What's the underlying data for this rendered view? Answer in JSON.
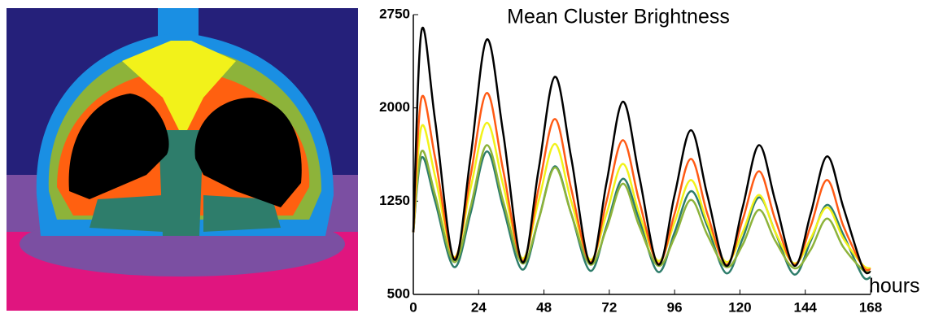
{
  "chart_data": {
    "type": "line",
    "title": "Mean Cluster Brightness",
    "xlabel": "hours",
    "x": [
      0,
      3,
      8,
      15,
      21,
      27,
      33,
      40,
      46,
      52,
      58,
      65,
      71,
      77,
      83,
      90,
      96,
      102,
      108,
      115,
      121,
      127,
      133,
      140,
      146,
      152,
      158,
      165,
      168
    ],
    "xlim": [
      0,
      168
    ],
    "xticks": [
      0,
      24,
      48,
      72,
      96,
      120,
      144,
      168
    ],
    "ylim": [
      500,
      2750
    ],
    "yticks": [
      500,
      1250,
      2000,
      2750
    ],
    "series": [
      {
        "color": "#000000",
        "values": [
          1000,
          2620,
          1900,
          780,
          1600,
          2550,
          1800,
          760,
          1500,
          2250,
          1600,
          750,
          1400,
          2050,
          1450,
          740,
          1300,
          1820,
          1300,
          730,
          1200,
          1700,
          1250,
          730,
          1150,
          1610,
          1200,
          720,
          680
        ]
      },
      {
        "color": "#ff5a14",
        "values": [
          1000,
          2080,
          1600,
          790,
          1450,
          2120,
          1500,
          770,
          1350,
          1910,
          1350,
          760,
          1250,
          1740,
          1250,
          750,
          1150,
          1590,
          1150,
          740,
          1100,
          1490,
          1100,
          740,
          1050,
          1420,
          1050,
          730,
          700
        ]
      },
      {
        "color": "#f2f21a",
        "values": [
          1000,
          1850,
          1450,
          800,
          1350,
          1880,
          1380,
          790,
          1250,
          1710,
          1250,
          780,
          1150,
          1550,
          1150,
          770,
          1080,
          1420,
          1080,
          760,
          1000,
          1300,
          1000,
          750,
          950,
          1200,
          950,
          740,
          710
        ]
      },
      {
        "color": "#8db33a",
        "values": [
          1000,
          1650,
          1300,
          760,
          1200,
          1700,
          1250,
          750,
          1100,
          1520,
          1150,
          740,
          1030,
          1390,
          1050,
          730,
          960,
          1260,
          980,
          720,
          900,
          1180,
          930,
          710,
          860,
          1110,
          880,
          700,
          680
        ]
      },
      {
        "color": "#2e7d6b",
        "values": [
          1000,
          1600,
          1250,
          720,
          1150,
          1650,
          1200,
          700,
          1100,
          1530,
          1150,
          690,
          1050,
          1430,
          1100,
          680,
          1000,
          1330,
          1050,
          670,
          950,
          1280,
          1000,
          660,
          930,
          1220,
          980,
          650,
          640
        ]
      }
    ]
  }
}
